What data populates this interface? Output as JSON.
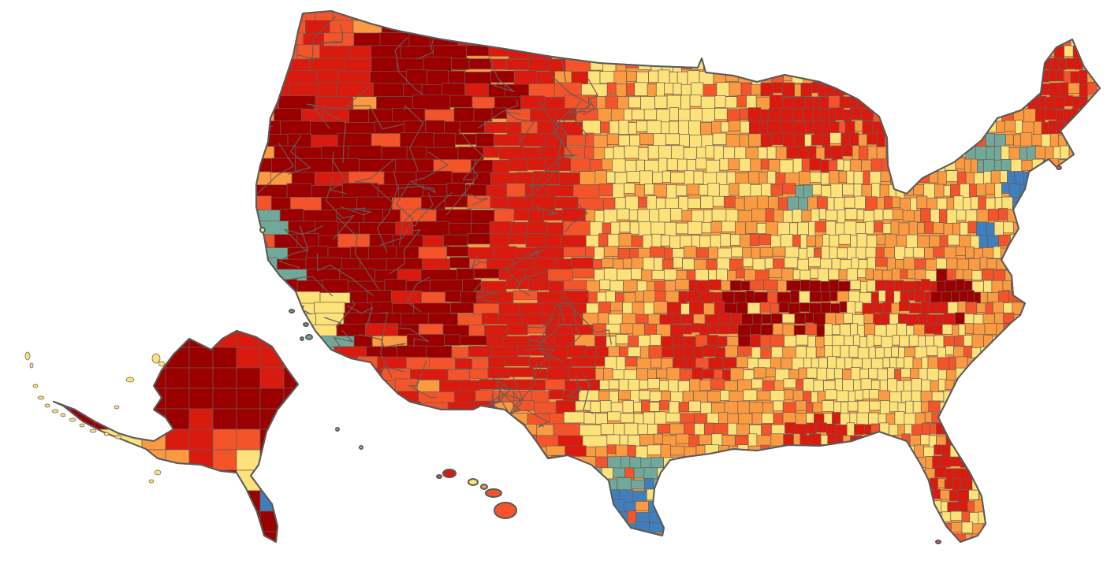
{
  "map": {
    "regions": [
      {
        "name": "contiguous-us"
      },
      {
        "name": "alaska"
      },
      {
        "name": "hawaii"
      }
    ],
    "palette": {
      "darkest": "#9a0000",
      "dark": "#d91a0e",
      "mid_dark": "#f4542a",
      "mid": "#fb9b41",
      "light": "#fde27a",
      "teal": "#70a999",
      "blue": "#3f7fbd"
    }
  }
}
